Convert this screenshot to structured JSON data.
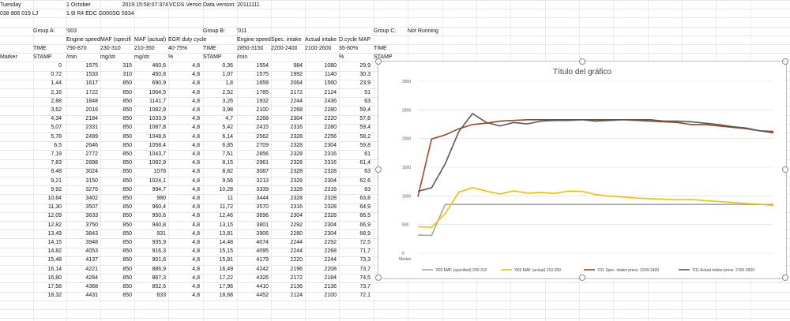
{
  "spreadsheet": {
    "top": {
      "day": "Tuesday",
      "date": "1 October",
      "year_time": "2019 15:58:07:374",
      "vcds": "VCDS Versio",
      "data_version": "Data version: 20111111",
      "code": "038 906 019 LJ",
      "ecu": "1.9l R4 EDC G000SG 5934"
    },
    "groups": {
      "a_label": "Group A:",
      "a_value": "'003",
      "b_label": "Group B:",
      "b_value": "'011",
      "c_label": "Group C:",
      "c_value": "Not Running"
    },
    "headers_row1": [
      "Engine speed",
      "MAF (specifi",
      "MAF (actual)",
      "EGR duty cycle",
      "Engine speed",
      "Spec. intake",
      "Actual intake",
      "D.cycle MAP"
    ],
    "headers_row2": [
      "TIME",
      "790-870",
      "230-310",
      "210-350",
      "40-75%",
      "TIME",
      "2850-3150",
      "2200-2400",
      "2100-2600",
      "35-80%",
      "TIME"
    ],
    "headers_row3": [
      "Marker",
      "STAMP",
      "/min",
      "mg/str",
      "mg/str",
      "%",
      "STAMP",
      "/min",
      "",
      "",
      "%",
      "STAMP"
    ],
    "rows": [
      [
        "0",
        "1575",
        "315",
        "460,6",
        "4,8",
        "0,36",
        "1554",
        "984",
        "1080",
        "29,9"
      ],
      [
        "0,72",
        "1533",
        "310",
        "450,8",
        "4,8",
        "1,07",
        "1575",
        "1992",
        "1140",
        "30,3"
      ],
      [
        "1,44",
        "1617",
        "850",
        "690,9",
        "4,8",
        "1,8",
        "1659",
        "2064",
        "1560",
        "23,9"
      ],
      [
        "2,16",
        "1722",
        "850",
        "1064,5",
        "4,8",
        "2,52",
        "1785",
        "2172",
        "2124",
        "51"
      ],
      [
        "2,88",
        "1848",
        "850",
        "1141,7",
        "4,8",
        "3,26",
        "1932",
        "2244",
        "2436",
        "63"
      ],
      [
        "3,62",
        "2016",
        "850",
        "1082,9",
        "4,8",
        "3,98",
        "2100",
        "2268",
        "2280",
        "59,4"
      ],
      [
        "4,34",
        "2184",
        "850",
        "1033,9",
        "4,8",
        "4,7",
        "2268",
        "2304",
        "2220",
        "57,8"
      ],
      [
        "5,07",
        "2331",
        "850",
        "1087,8",
        "4,8",
        "5,42",
        "2415",
        "2316",
        "2280",
        "59,4"
      ],
      [
        "5,78",
        "2499",
        "850",
        "1048,6",
        "4,8",
        "6,14",
        "2562",
        "2328",
        "2256",
        "58,2"
      ],
      [
        "6,5",
        "2646",
        "850",
        "1058,4",
        "4,8",
        "6,85",
        "2709",
        "2328",
        "2304",
        "59,8"
      ],
      [
        "7,19",
        "2772",
        "850",
        "1043,7",
        "4,8",
        "7,51",
        "2856",
        "2328",
        "2316",
        "61"
      ],
      [
        "7,83",
        "2898",
        "850",
        "1082,9",
        "4,8",
        "8,15",
        "2961",
        "2328",
        "2316",
        "61,4"
      ],
      [
        "8,48",
        "3024",
        "850",
        "1078",
        "4,8",
        "8,82",
        "3087",
        "2328",
        "2328",
        "63"
      ],
      [
        "9,21",
        "3150",
        "850",
        "1024,1",
        "4,8",
        "9,56",
        "3213",
        "2328",
        "2304",
        "62,6"
      ],
      [
        "9,92",
        "3276",
        "850",
        "994,7",
        "4,8",
        "10,28",
        "3339",
        "2328",
        "2316",
        "63"
      ],
      [
        "10,64",
        "3402",
        "850",
        "980",
        "4,8",
        "11",
        "3444",
        "2328",
        "2328",
        "63,8"
      ],
      [
        "11,30",
        "3507",
        "850",
        "960,4",
        "4,8",
        "11,72",
        "3570",
        "2316",
        "2328",
        "64,9"
      ],
      [
        "12,09",
        "3633",
        "850",
        "950,6",
        "4,8",
        "12,46",
        "3696",
        "2304",
        "2328",
        "66,5"
      ],
      [
        "12,82",
        "3750",
        "850",
        "940,8",
        "4,8",
        "13,15",
        "3801",
        "2292",
        "2304",
        "66,9"
      ],
      [
        "13,49",
        "3843",
        "850",
        "931",
        "4,8",
        "13,81",
        "3906",
        "2280",
        "2304",
        "68,9"
      ],
      [
        "14,15",
        "3948",
        "850",
        "935,9",
        "4,8",
        "14,48",
        "4074",
        "2244",
        "2292",
        "72,5"
      ],
      [
        "14,82",
        "4053",
        "850",
        "916,3",
        "4,8",
        "15,15",
        "4095",
        "2244",
        "2268",
        "71,7"
      ],
      [
        "15,48",
        "4137",
        "850",
        "901,6",
        "4,8",
        "15,81",
        "4179",
        "2220",
        "2244",
        "73,3"
      ],
      [
        "16,14",
        "4221",
        "850",
        "886,9",
        "4,8",
        "16,49",
        "4242",
        "2196",
        "2208",
        "73,7"
      ],
      [
        "16,80",
        "4284",
        "850",
        "867,3",
        "4,8",
        "17,22",
        "4326",
        "2172",
        "2184",
        "74,5"
      ],
      [
        "17,58",
        "4368",
        "850",
        "852,6",
        "4,8",
        "17,96",
        "4410",
        "2136",
        "2136",
        "73,7"
      ],
      [
        "18,32",
        "4431",
        "850",
        "833",
        "4,8",
        "18,68",
        "4452",
        "2124",
        "2100",
        "72,1"
      ]
    ]
  },
  "chart_data": {
    "type": "line",
    "title": "Título del gráfico",
    "xlabel": "Marker",
    "ylim": [
      0,
      3000
    ],
    "yticks": [
      "0",
      "500",
      "1000",
      "1500",
      "2000",
      "2500",
      "3000"
    ],
    "legend_position": "bottom",
    "series": [
      {
        "name": "'003 MAF (specified) 230-310",
        "color": "#a6a6a6",
        "values": [
          315,
          310,
          850,
          850,
          850,
          850,
          850,
          850,
          850,
          850,
          850,
          850,
          850,
          850,
          850,
          850,
          850,
          850,
          850,
          850,
          850,
          850,
          850,
          850,
          850,
          850,
          850
        ]
      },
      {
        "name": "'003 MAF (actual) 210-350",
        "color": "#f0c000",
        "values": [
          460.6,
          450.8,
          690.9,
          1064.5,
          1141.7,
          1082.9,
          1033.9,
          1087.8,
          1048.6,
          1058.4,
          1043.7,
          1082.9,
          1078,
          1024.1,
          994.7,
          980,
          960.4,
          950.6,
          940.8,
          931,
          935.9,
          916.3,
          901.6,
          886.9,
          867.3,
          852.6,
          833
        ]
      },
      {
        "name": "'011 Spec. intake press. 2200-2400",
        "color": "#a0441a",
        "values": [
          984,
          1992,
          2064,
          2172,
          2244,
          2268,
          2304,
          2316,
          2328,
          2328,
          2328,
          2328,
          2328,
          2328,
          2328,
          2328,
          2316,
          2304,
          2292,
          2280,
          2244,
          2244,
          2220,
          2196,
          2172,
          2136,
          2124
        ]
      },
      {
        "name": "'011 Actual intake press. 2100-2600",
        "color": "#595959",
        "values": [
          1080,
          1140,
          1560,
          2124,
          2436,
          2280,
          2220,
          2280,
          2256,
          2304,
          2316,
          2316,
          2328,
          2304,
          2316,
          2328,
          2328,
          2328,
          2304,
          2304,
          2292,
          2268,
          2244,
          2208,
          2184,
          2136,
          2100
        ]
      }
    ]
  }
}
